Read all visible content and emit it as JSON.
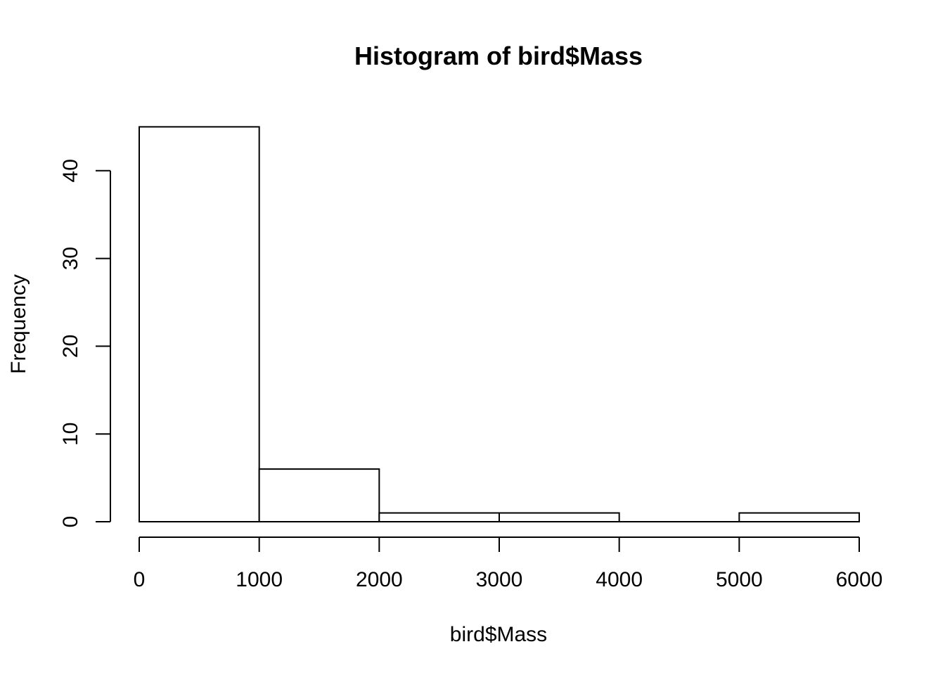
{
  "chart_data": {
    "type": "bar",
    "title": "Histogram of bird$Mass",
    "xlabel": "bird$Mass",
    "ylabel": "Frequency",
    "bins": [
      {
        "from": 0,
        "to": 1000,
        "count": 45
      },
      {
        "from": 1000,
        "to": 2000,
        "count": 6
      },
      {
        "from": 2000,
        "to": 3000,
        "count": 1
      },
      {
        "from": 3000,
        "to": 4000,
        "count": 1
      },
      {
        "from": 4000,
        "to": 5000,
        "count": 0
      },
      {
        "from": 5000,
        "to": 6000,
        "count": 1
      }
    ],
    "xlim": [
      0,
      6000
    ],
    "ylim": [
      0,
      45
    ],
    "x_ticks": [
      "0",
      "1000",
      "2000",
      "3000",
      "4000",
      "5000",
      "6000"
    ],
    "y_ticks": [
      "0",
      "10",
      "20",
      "30",
      "40"
    ],
    "grid": false,
    "legend": "none",
    "bar_fill": "#ffffff",
    "bar_stroke": "#000000"
  }
}
